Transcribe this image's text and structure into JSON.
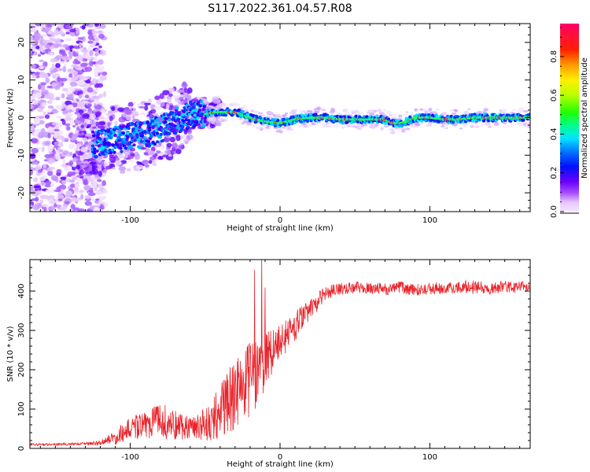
{
  "title": "S117.2022.361.04.57.R08",
  "chart_data": [
    {
      "type": "heatmap",
      "xlabel": "Height of straight line (km)",
      "ylabel": "Frequency (Hz)",
      "xlim": [
        -167,
        167
      ],
      "ylim": [
        -25,
        25
      ],
      "x_ticks": [
        -100,
        0,
        100
      ],
      "y_ticks": [
        -20,
        -10,
        0,
        10,
        20
      ],
      "colorbar": {
        "label": "Normalized spectral amplitude",
        "range": [
          0,
          0.97
        ],
        "ticks": [
          0.0,
          0.2,
          0.4,
          0.6,
          0.8
        ]
      },
      "ridge": {
        "x": [
          -120,
          -110,
          -100,
          -90,
          -80,
          -70,
          -60,
          -50,
          -40,
          -30,
          -20,
          -10,
          0,
          10,
          20,
          30,
          40,
          50,
          60,
          70,
          75,
          80,
          85,
          90,
          95,
          100,
          110,
          120,
          130,
          140,
          150,
          160,
          167
        ],
        "y": [
          -7,
          -6,
          -5,
          -4.5,
          -3,
          -1,
          1,
          1,
          1.5,
          1.5,
          0,
          -1,
          -1.5,
          -0.5,
          0,
          0,
          -0.5,
          -0.5,
          -0.5,
          -0.5,
          -1.5,
          -1.5,
          -1,
          0,
          0,
          0,
          -0.5,
          -0.5,
          0,
          0,
          0,
          0,
          0
        ]
      }
    },
    {
      "type": "line",
      "xlabel": "Height of straight line (km)",
      "ylabel": "SNR (10 * v/v)",
      "xlim": [
        -167,
        167
      ],
      "ylim": [
        0,
        480
      ],
      "x_ticks": [
        -100,
        0,
        100
      ],
      "y_ticks": [
        0,
        100,
        200,
        300,
        400
      ],
      "series": [
        {
          "color": "#e8232a",
          "x": [
            -167,
            -150,
            -130,
            -120,
            -110,
            -100,
            -90,
            -80,
            -70,
            -60,
            -50,
            -40,
            -30,
            -20,
            -10,
            0,
            10,
            20,
            30,
            40,
            50,
            60,
            70,
            80,
            90,
            100,
            110,
            120,
            130,
            140,
            150,
            160,
            167
          ],
          "values": [
            10,
            10,
            12,
            15,
            28,
            50,
            60,
            70,
            60,
            55,
            60,
            90,
            140,
            170,
            230,
            270,
            310,
            350,
            395,
            405,
            410,
            408,
            405,
            410,
            402,
            406,
            408,
            410,
            412,
            405,
            412,
            410,
            408
          ],
          "noise": [
            3,
            3,
            4,
            6,
            18,
            30,
            35,
            45,
            40,
            30,
            40,
            70,
            90,
            100,
            80,
            45,
            40,
            30,
            18,
            15,
            15,
            15,
            15,
            15,
            15,
            15,
            15,
            15,
            20,
            15,
            15,
            15,
            15
          ]
        }
      ]
    }
  ]
}
